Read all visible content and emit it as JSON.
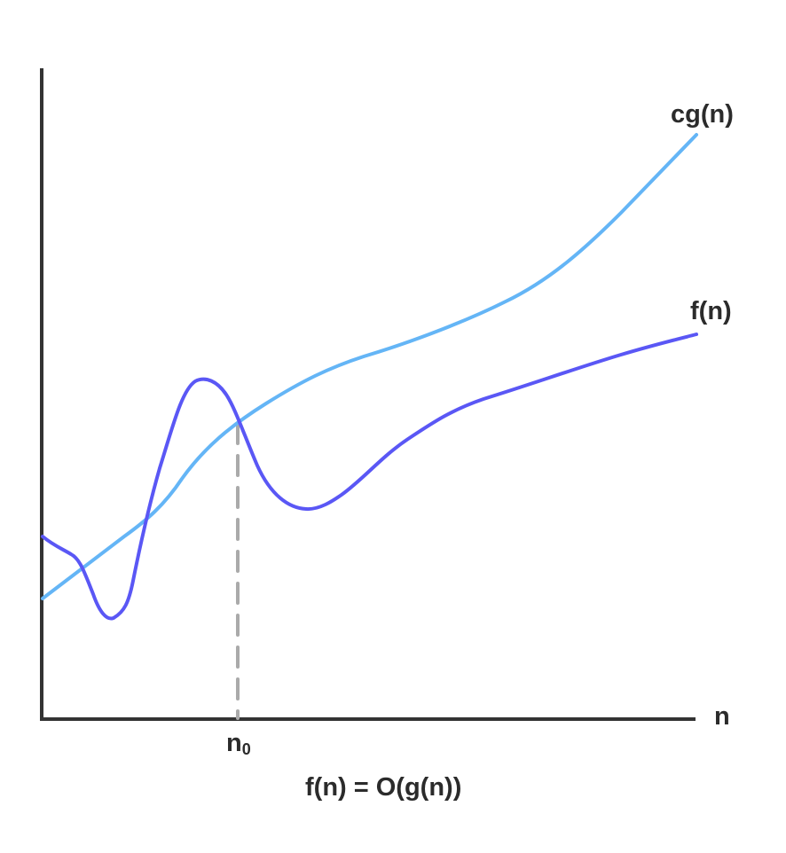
{
  "labels": {
    "upper_curve": "cg(n)",
    "lower_curve": "f(n)",
    "x_axis": "n",
    "threshold_base": "n",
    "threshold_sub": "0",
    "caption": "f(n) = O(g(n))"
  },
  "colors": {
    "cg_curve": "#64B5F6",
    "f_curve": "#5A57F5",
    "axes": "#333333",
    "threshold_line": "#AAAAAA"
  }
}
